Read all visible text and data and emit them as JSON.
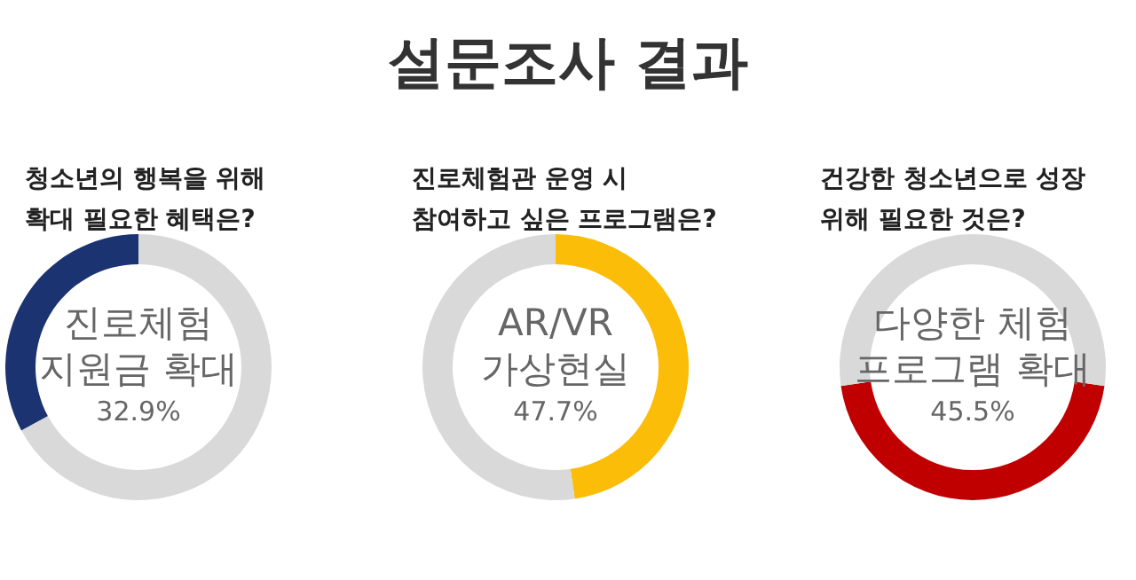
{
  "chart_data": [
    {
      "type": "other",
      "title": "설문조사 결과"
    },
    {
      "type": "donut",
      "title": "청소년의 행복을 위해 확대 필요한 혜택은?",
      "categories": [
        "진로체험 지원금 확대",
        null
      ],
      "values": [
        32.9,
        67.1
      ],
      "colors": [
        "#1b3471",
        "#d9d9d9"
      ],
      "value_labels": [
        "32.9%",
        null
      ]
    },
    {
      "type": "donut",
      "title": "진로체험관 운영 시 참여하고 싶은 프로그램은?",
      "categories": [
        "AR/VR 가상현실",
        null
      ],
      "values": [
        47.7,
        52.3
      ],
      "colors": [
        "#fbbd08",
        "#d9d9d9"
      ],
      "value_labels": [
        "47.7%",
        null
      ]
    },
    {
      "type": "donut",
      "title": "건강한 청소년으로 성장 위해 필요한 것은?",
      "categories": [
        "다양한 체험 프로그램 확대",
        null
      ],
      "values": [
        45.5,
        54.5
      ],
      "colors": [
        "#c00000",
        "#d9d9d9"
      ],
      "value_labels": [
        "45.5%",
        null
      ]
    }
  ]
}
